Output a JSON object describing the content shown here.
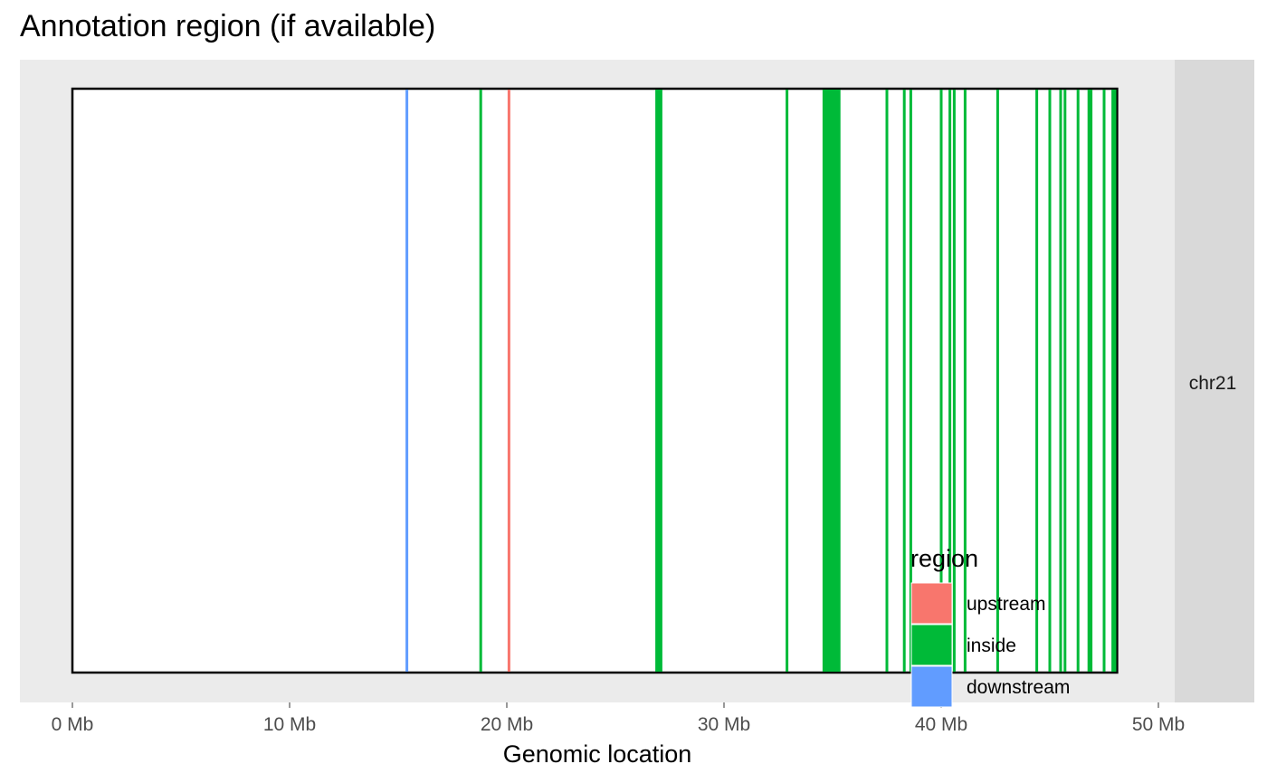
{
  "chart_data": {
    "type": "line",
    "title": "Annotation region (if available)",
    "xlabel": "Genomic location",
    "ylabel": "",
    "xlim": [
      0,
      50
    ],
    "x_ticks": [
      0,
      10,
      20,
      30,
      40,
      50
    ],
    "x_tick_labels": [
      "0 Mb",
      "10 Mb",
      "20 Mb",
      "30 Mb",
      "40 Mb",
      "50 Mb"
    ],
    "facet_label": "chr21",
    "chromosome_extent": [
      0,
      48.1
    ],
    "legend": {
      "title": "region",
      "placement": "bottom-right",
      "entries": [
        {
          "label": "upstream",
          "color": "#F8766D"
        },
        {
          "label": "inside",
          "color": "#00BA38"
        },
        {
          "label": "downstream",
          "color": "#619CFF"
        }
      ]
    },
    "series": [
      {
        "name": "upstream",
        "color": "#F8766D",
        "x": [
          20.1
        ]
      },
      {
        "name": "inside",
        "color": "#00BA38",
        "x": [
          18.8,
          26.9,
          27.0,
          27.1,
          32.9,
          34.6,
          34.7,
          34.8,
          34.9,
          35.0,
          35.1,
          35.2,
          35.3,
          37.5,
          38.3,
          38.6,
          40.0,
          40.4,
          40.6,
          41.1,
          42.6,
          44.4,
          45.0,
          45.5,
          45.7,
          46.3,
          46.8,
          46.9,
          47.5,
          47.9,
          48.0
        ]
      },
      {
        "name": "downstream",
        "color": "#619CFF",
        "x": [
          15.4
        ]
      }
    ],
    "grid": false
  }
}
